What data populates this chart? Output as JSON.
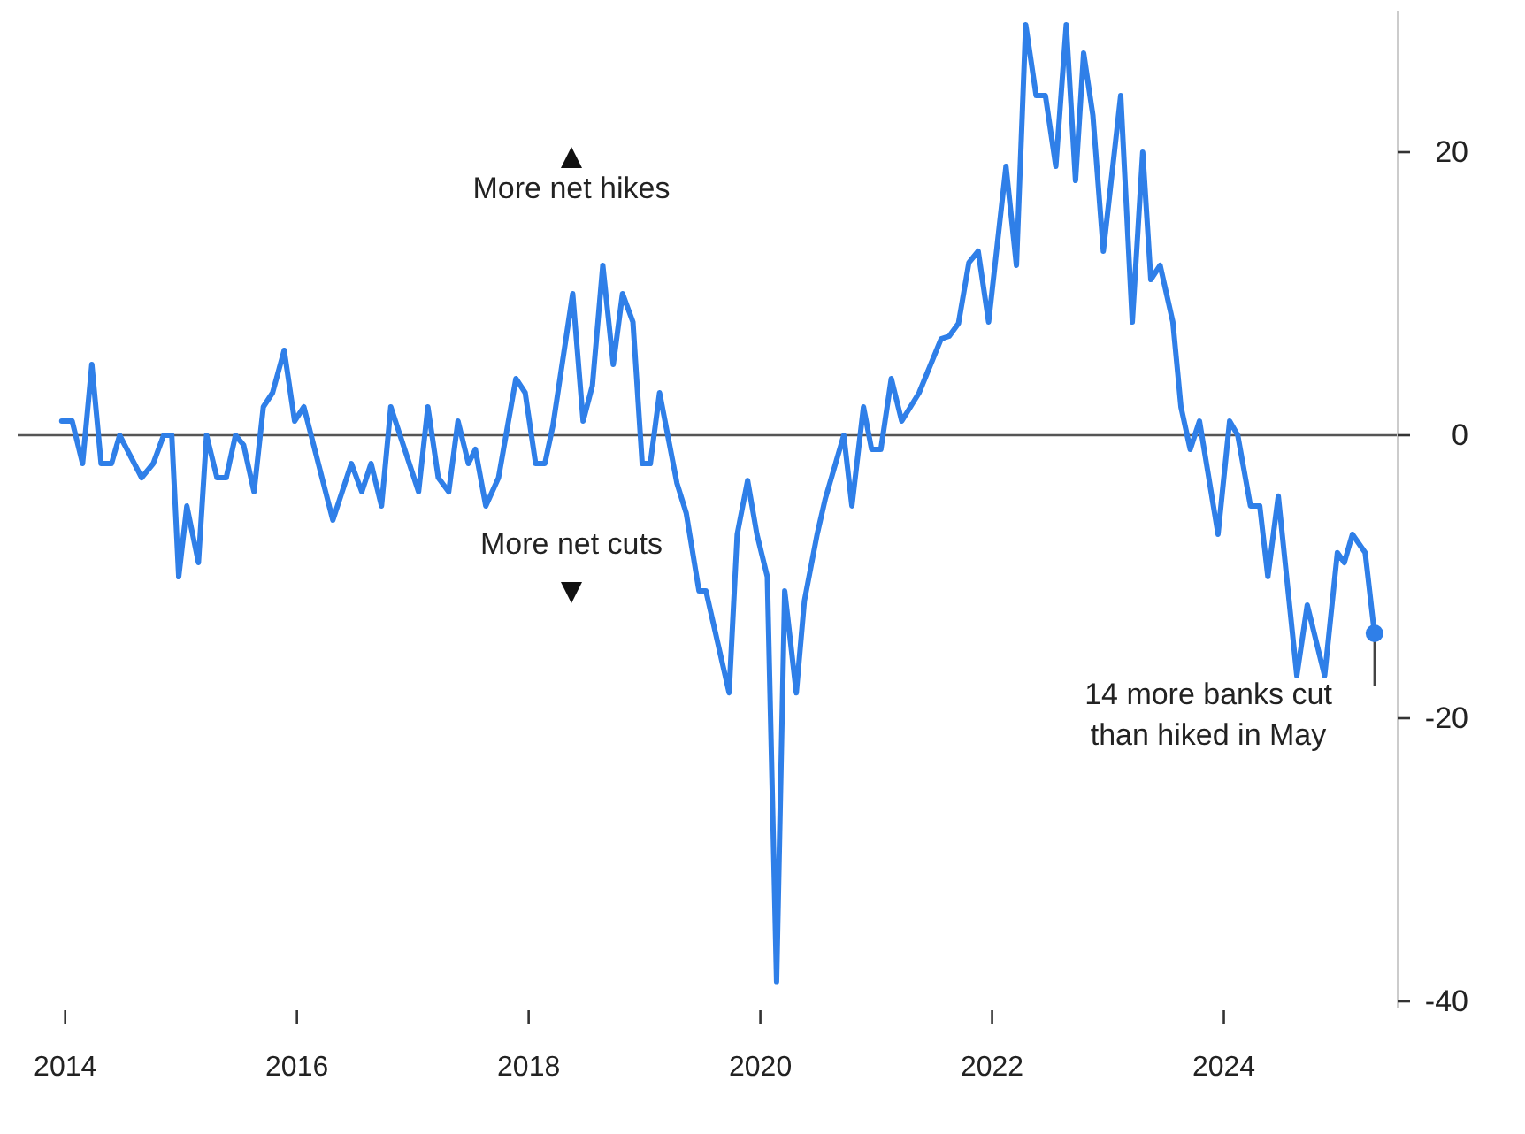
{
  "chart_data": {
    "type": "line",
    "x": [
      2013.97,
      2014.06,
      2014.15,
      2014.23,
      2014.31,
      2014.4,
      2014.47,
      2014.66,
      2014.76,
      2014.85,
      2014.92,
      2014.98,
      2015.05,
      2015.15,
      2015.22,
      2015.31,
      2015.39,
      2015.47,
      2015.54,
      2015.63,
      2015.71,
      2015.79,
      2015.89,
      2015.98,
      2016.06,
      2016.31,
      2016.47,
      2016.56,
      2016.64,
      2016.73,
      2016.81,
      2017.05,
      2017.13,
      2017.22,
      2017.31,
      2017.39,
      2017.48,
      2017.54,
      2017.63,
      2017.74,
      2017.89,
      2017.97,
      2018.06,
      2018.14,
      2018.21,
      2018.38,
      2018.47,
      2018.55,
      2018.64,
      2018.73,
      2018.81,
      2018.9,
      2018.98,
      2019.05,
      2019.13,
      2019.28,
      2019.36,
      2019.47,
      2019.53,
      2019.63,
      2019.73,
      2019.8,
      2019.89,
      2019.97,
      2020.06,
      2020.14,
      2020.21,
      2020.31,
      2020.38,
      2020.49,
      2020.56,
      2020.72,
      2020.79,
      2020.89,
      2020.96,
      2021.04,
      2021.13,
      2021.22,
      2021.37,
      2021.56,
      2021.63,
      2021.71,
      2021.8,
      2021.88,
      2021.97,
      2022.12,
      2022.21,
      2022.29,
      2022.38,
      2022.46,
      2022.55,
      2022.64,
      2022.72,
      2022.79,
      2022.87,
      2022.96,
      2023.11,
      2023.21,
      2023.3,
      2023.37,
      2023.45,
      2023.56,
      2023.63,
      2023.71,
      2023.79,
      2023.95,
      2024.05,
      2024.12,
      2024.23,
      2024.31,
      2024.38,
      2024.47,
      2024.63,
      2024.72,
      2024.87,
      2024.98,
      2025.04,
      2025.11,
      2025.22,
      2025.3
    ],
    "series": [
      {
        "color": "#2f7fe8",
        "values": [
          1,
          1,
          -2,
          5,
          -2,
          -2,
          0,
          -3,
          -2,
          0,
          0,
          -10,
          -5,
          -9,
          0,
          -3,
          -3,
          0,
          -0.7,
          -4,
          2,
          3,
          6,
          1,
          2,
          -6,
          -2,
          -4,
          -2,
          -5,
          2,
          -4,
          2,
          -3,
          -4,
          1,
          -2,
          -1,
          -5,
          -3,
          4,
          3,
          -2,
          -2,
          0.7,
          10,
          1,
          3.5,
          12,
          5,
          10,
          8,
          -2,
          -2,
          3,
          -3.4,
          -5.5,
          -11,
          -11,
          -14.6,
          -18.2,
          -7,
          -3.2,
          -7,
          -10,
          -38.6,
          -11,
          -18.2,
          -11.7,
          -7,
          -4.5,
          0,
          -5,
          2,
          -1,
          -1,
          4,
          1,
          3,
          6.8,
          7,
          7.9,
          12.2,
          13,
          8,
          19,
          12,
          29,
          24,
          24,
          19,
          29,
          18,
          27,
          22.6,
          13,
          24,
          8,
          20,
          11,
          12,
          8,
          2,
          -1,
          1,
          -7,
          1,
          0,
          -5,
          -5,
          -10,
          -4.3,
          -17,
          -12,
          -17,
          -8.3,
          -9,
          -7,
          -8.3,
          -14
        ]
      }
    ],
    "xlim": [
      2013.59,
      2025.5
    ],
    "xticks": [
      2014,
      2016,
      2018,
      2020,
      2022,
      2024
    ],
    "ylim": [
      -40.5,
      30
    ],
    "yticks": [
      -40,
      -20,
      0,
      20
    ],
    "ref_lines": [
      {
        "axis": "y",
        "value": 0,
        "color": "#555555"
      }
    ],
    "annotations": [
      "More net hikes",
      "More net cuts",
      {
        "text": "14 more banks cut than hiked in May",
        "x": 2025.3,
        "y": -14
      }
    ],
    "grid": false,
    "marker": "none",
    "line_style": "solid"
  }
}
